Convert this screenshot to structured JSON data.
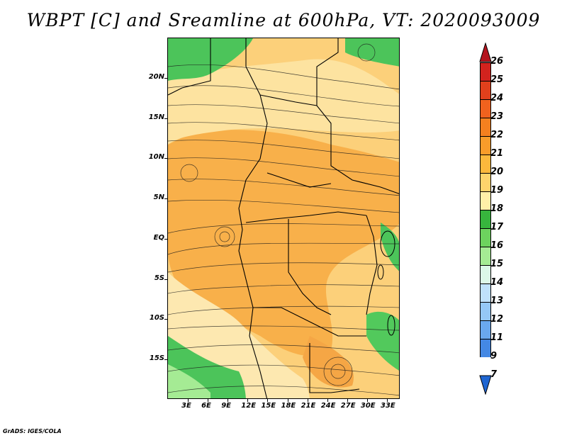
{
  "title": "WBPT [C] and Sreamline at 600hPa, VT: 2020093009",
  "credit": "GrADS: IGES/COLA",
  "map": {
    "lat_labels": [
      "20N",
      "15N",
      "10N",
      "5N",
      "EQ",
      "5S",
      "10S",
      "15S"
    ],
    "lon_labels": [
      "3E",
      "6E",
      "9E",
      "12E",
      "15E",
      "18E",
      "21E",
      "24E",
      "27E",
      "30E",
      "33E"
    ],
    "lat_values": [
      20,
      15,
      10,
      5,
      0,
      -5,
      -10,
      -15
    ],
    "lon_values": [
      3,
      6,
      9,
      12,
      15,
      18,
      21,
      24,
      27,
      30,
      33
    ]
  },
  "colorbar": {
    "labels": [
      "26",
      "25",
      "24",
      "23",
      "22",
      "21",
      "20",
      "19",
      "18",
      "17",
      "16",
      "15",
      "14",
      "13",
      "12",
      "11",
      "9",
      "7"
    ],
    "colors": [
      "#b4141e",
      "#d2231e",
      "#e1401c",
      "#f0621e",
      "#f5801f",
      "#f99c2a",
      "#fcb83c",
      "#fed46c",
      "#fff0a8",
      "#37b53d",
      "#6dd35e",
      "#a5eb94",
      "#dcf8e8",
      "#bfe1fb",
      "#95c8f6",
      "#6aa8ee",
      "#4488e4",
      "#1f66d2"
    ]
  }
}
